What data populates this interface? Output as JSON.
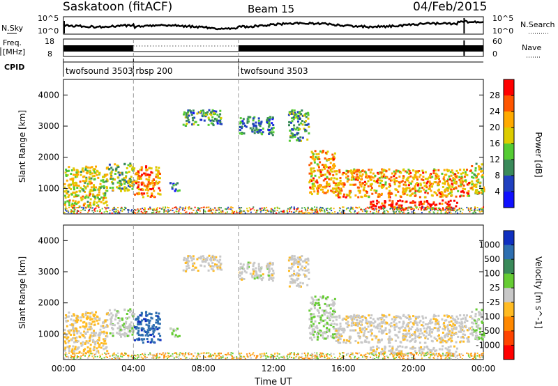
{
  "header": {
    "site": "Saskatoon (fitACF)",
    "beam": "Beam 15",
    "date": "04/Feb/2015"
  },
  "left_labels": {
    "nsky": "N.Sky",
    "freq_line1": "Freq.",
    "freq_line2": "[MHz]",
    "cpid": "CPID"
  },
  "right_labels": {
    "nsearch": "N.Search",
    "nave": "Nave"
  },
  "noise_panel": {
    "left_ticks": [
      "10^5",
      "10^0"
    ],
    "right_ticks": [
      "10^5",
      "10^0"
    ]
  },
  "freq_panel": {
    "left_ticks": [
      "18",
      "8"
    ],
    "right_ticks": [
      "60",
      "0"
    ]
  },
  "cpid_segments": [
    {
      "label": "twofsound 3503",
      "start_hour": 0.0
    },
    {
      "label": "rbsp 200",
      "start_hour": 4.0
    },
    {
      "label": "twofsound 3503",
      "start_hour": 10.0
    }
  ],
  "power_colorbar": {
    "title": "Power [dB]",
    "ticks": [
      "28",
      "24",
      "20",
      "16",
      "12",
      "8",
      "4"
    ],
    "colors": [
      "#ff0000",
      "#ff5500",
      "#ffaa00",
      "#ddcc00",
      "#55cc33",
      "#3a8a5a",
      "#2040c0",
      "#1010ff"
    ]
  },
  "velocity_colorbar": {
    "title": "Velocity [m s^-1]",
    "ticks": [
      "1000",
      "500",
      "100",
      "25",
      "-25",
      "-100",
      "-500",
      "-1000"
    ],
    "colors": [
      "#1030c0",
      "#2e6fb0",
      "#3a8a5a",
      "#66cc33",
      "#c8c8c8",
      "#ffbb22",
      "#ff8800",
      "#ff4400",
      "#ff0000"
    ]
  },
  "chart_data": {
    "type": "heatmap",
    "x_tick_labels": [
      "00:00",
      "04:00",
      "08:00",
      "12:00",
      "16:00",
      "20:00",
      "00:00"
    ],
    "xlabel": "Time UT",
    "ylabel": "Slant Range [km]",
    "y_tick_labels": [
      "1000",
      "2000",
      "3000",
      "4000"
    ],
    "xlim_hours": [
      0,
      24
    ],
    "ylim_km": [
      180,
      4500
    ],
    "scatter_regions": [
      {
        "t0": 0.0,
        "t1": 2.5,
        "r0": 400,
        "r1": 1700,
        "pw": 18,
        "vel": -30
      },
      {
        "t0": 2.5,
        "t1": 4.0,
        "r0": 900,
        "r1": 1800,
        "pw": 14,
        "vel": 10
      },
      {
        "t0": 4.0,
        "t1": 5.5,
        "r0": 700,
        "r1": 1700,
        "pw": 24,
        "vel": 800
      },
      {
        "t0": 6.0,
        "t1": 6.6,
        "r0": 900,
        "r1": 1200,
        "pw": 9,
        "vel": 20
      },
      {
        "t0": 6.8,
        "t1": 9.0,
        "r0": 3000,
        "r1": 3500,
        "pw": 10,
        "vel": -10
      },
      {
        "t0": 10.0,
        "t1": 12.0,
        "r0": 2700,
        "r1": 3300,
        "pw": 9,
        "vel": 0
      },
      {
        "t0": 12.8,
        "t1": 14.0,
        "r0": 2500,
        "r1": 3500,
        "pw": 12,
        "vel": -5
      },
      {
        "t0": 14.0,
        "t1": 15.5,
        "r0": 800,
        "r1": 2200,
        "pw": 22,
        "vel": 15
      },
      {
        "t0": 15.5,
        "t1": 23.2,
        "r0": 700,
        "r1": 1600,
        "pw": 22,
        "vel": -8
      },
      {
        "t0": 17.5,
        "t1": 22.5,
        "r0": 300,
        "r1": 600,
        "pw": 30,
        "vel": -5
      },
      {
        "t0": 23.2,
        "t1": 24.0,
        "r0": 800,
        "r1": 1800,
        "pw": 18,
        "vel": 20
      }
    ],
    "markers_hours": [
      4.0,
      10.0
    ]
  }
}
